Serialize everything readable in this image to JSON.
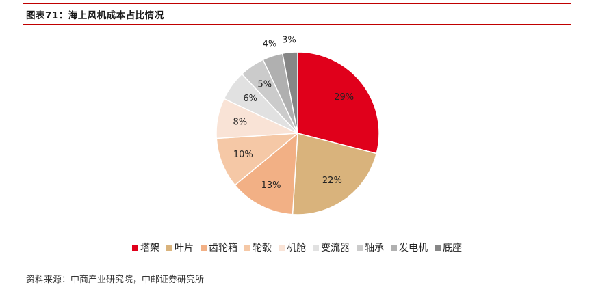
{
  "title": "图表71：海上风机成本占比情况",
  "source": "资料来源：中商产业研究院，中邮证券研究所",
  "chart_data": {
    "type": "pie",
    "title": "",
    "start_angle_deg": 0,
    "direction": "clockwise",
    "legend_position": "bottom",
    "categories": [
      "塔架",
      "叶片",
      "齿轮箱",
      "轮毂",
      "机舱",
      "变流器",
      "轴承",
      "发电机",
      "底座"
    ],
    "values": [
      29,
      22,
      13,
      10,
      8,
      6,
      5,
      4,
      3
    ],
    "labels": [
      "29%",
      "22%",
      "13%",
      "10%",
      "8%",
      "6%",
      "5%",
      "4%",
      "3%"
    ],
    "colors": [
      "#e0001b",
      "#d9b37c",
      "#f2b085",
      "#f5c8a6",
      "#f9e3d6",
      "#e1e1e1",
      "#cbcbcb",
      "#b0b0b0",
      "#868686"
    ]
  }
}
